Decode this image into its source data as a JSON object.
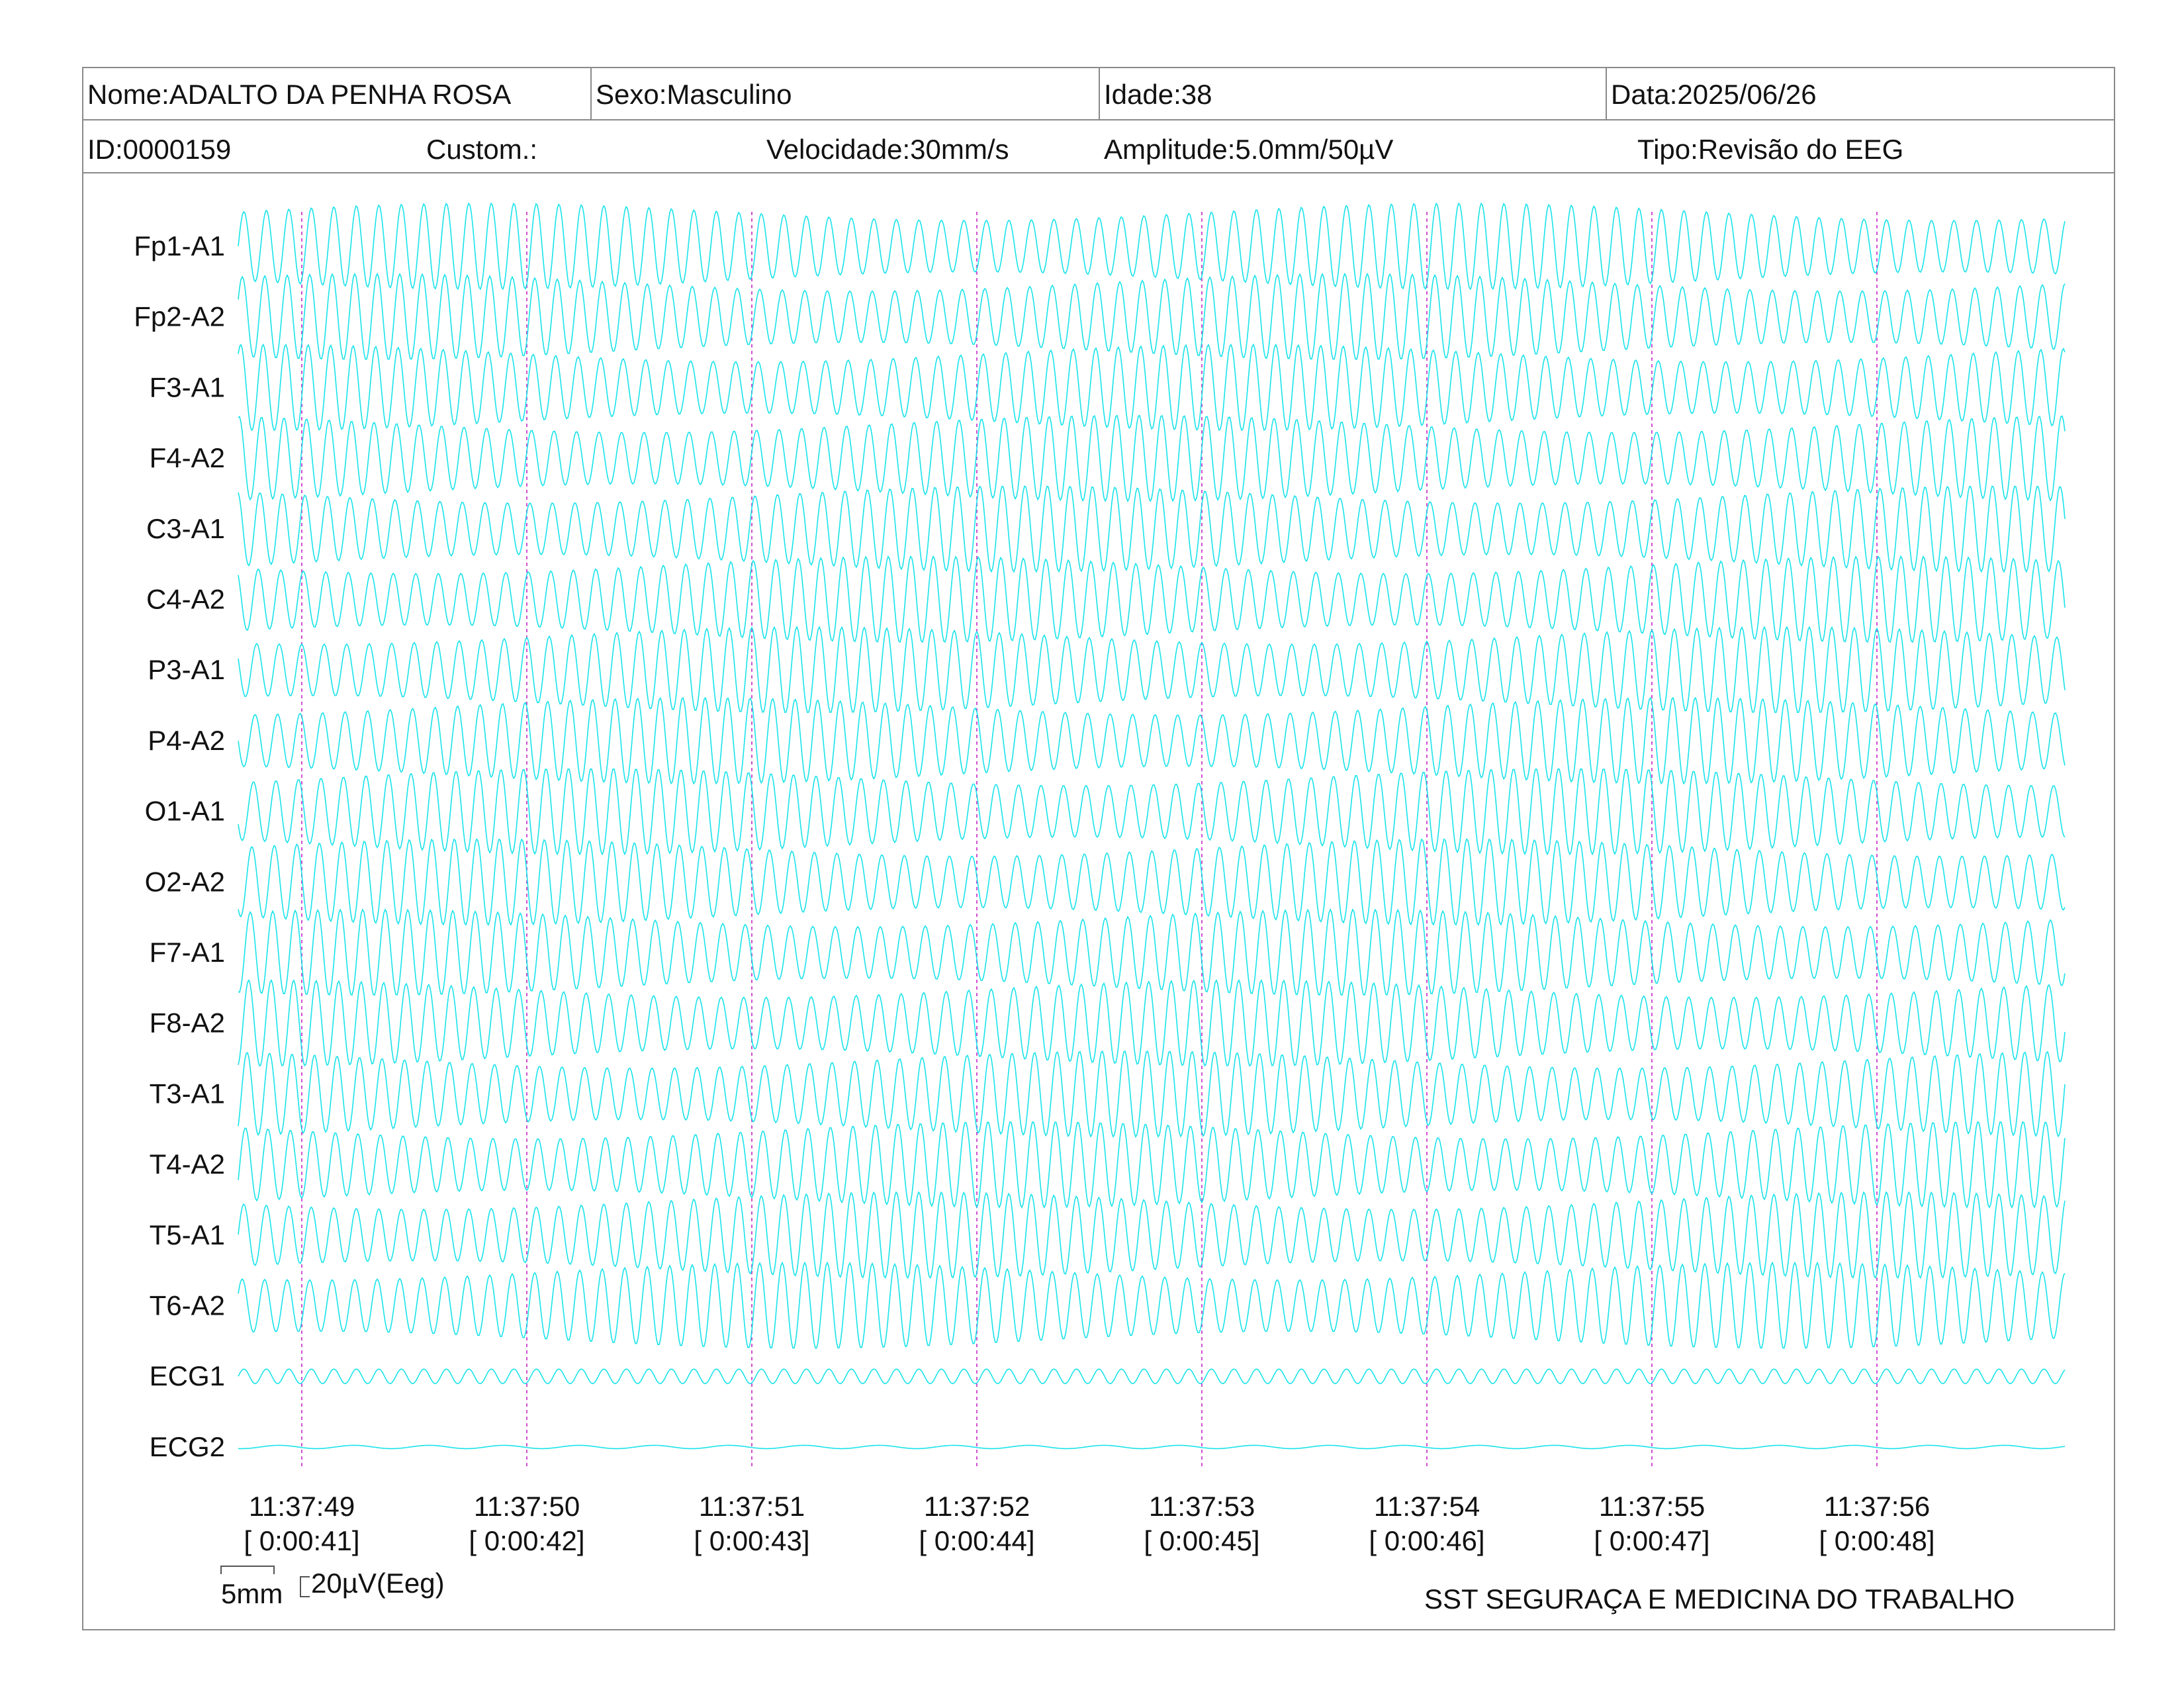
{
  "header": {
    "nome": "Nome:ADALTO DA PENHA ROSA",
    "sexo": "Sexo:Masculino",
    "idade": "Idade:38",
    "data": "Data:2025/06/26",
    "id": "ID:0000159",
    "custom": "Custom.:",
    "velocidade": "Velocidade:30mm/s",
    "amplitude": "Amplitude:5.0mm/50µV",
    "tipo": "Tipo:Revisão do EEG"
  },
  "footer": {
    "scale_time": "5mm",
    "scale_amp": "20µV(Eeg)",
    "institution": "SST SEGURAÇA E MEDICINA DO TRABALHO"
  },
  "colors": {
    "trace": "#00e0e8",
    "time_marker": "#d050d0",
    "border": "#8a8a8a"
  },
  "chart_data": {
    "type": "line",
    "channels": [
      "Fp1-A1",
      "Fp2-A2",
      "F3-A1",
      "F4-A2",
      "C3-A1",
      "C4-A2",
      "P3-A1",
      "P4-A2",
      "O1-A1",
      "O2-A2",
      "F7-A1",
      "F8-A2",
      "T3-A1",
      "T4-A2",
      "T5-A1",
      "T6-A2",
      "ECG1",
      "ECG2"
    ],
    "time_ticks": [
      "11:37:49",
      "11:37:50",
      "11:37:51",
      "11:37:52",
      "11:37:53",
      "11:37:54",
      "11:37:55",
      "11:37:56"
    ],
    "elapsed_ticks": [
      "[ 0:00:41]",
      "[ 0:00:42]",
      "[ 0:00:43]",
      "[ 0:00:44]",
      "[ 0:00:45]",
      "[ 0:00:46]",
      "[ 0:00:47]",
      "[ 0:00:48]"
    ],
    "x_range_s": [
      0,
      8.1
    ],
    "eeg_frequency_hz": 10,
    "eeg_amplitude_uv": 50,
    "ecg1_frequency_hz": 10,
    "ecg1_amplitude_uv": 5,
    "ecg2_amplitude_uv": 1
  }
}
